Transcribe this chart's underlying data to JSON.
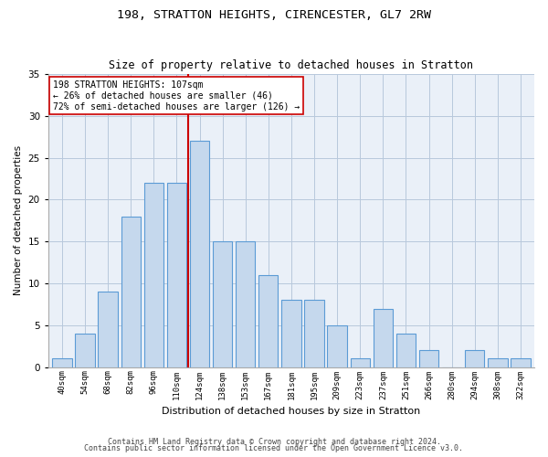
{
  "title1": "198, STRATTON HEIGHTS, CIRENCESTER, GL7 2RW",
  "title2": "Size of property relative to detached houses in Stratton",
  "xlabel": "Distribution of detached houses by size in Stratton",
  "ylabel": "Number of detached properties",
  "bar_labels": [
    "40sqm",
    "54sqm",
    "68sqm",
    "82sqm",
    "96sqm",
    "110sqm",
    "124sqm",
    "138sqm",
    "153sqm",
    "167sqm",
    "181sqm",
    "195sqm",
    "209sqm",
    "223sqm",
    "237sqm",
    "251sqm",
    "266sqm",
    "280sqm",
    "294sqm",
    "308sqm",
    "322sqm"
  ],
  "bar_values": [
    1,
    4,
    9,
    18,
    22,
    22,
    27,
    15,
    15,
    11,
    8,
    8,
    5,
    1,
    7,
    4,
    2,
    0,
    2,
    1,
    1
  ],
  "bar_color": "#c5d8ed",
  "bar_edge_color": "#5b9bd5",
  "vline_x_idx": 5,
  "vline_color": "#cc0000",
  "annotation_text": "198 STRATTON HEIGHTS: 107sqm\n← 26% of detached houses are smaller (46)\n72% of semi-detached houses are larger (126) →",
  "annotation_box_color": "#ffffff",
  "annotation_box_edge": "#cc0000",
  "ylim": [
    0,
    35
  ],
  "yticks": [
    0,
    5,
    10,
    15,
    20,
    25,
    30,
    35
  ],
  "bg_color": "#eaf0f8",
  "footer1": "Contains HM Land Registry data © Crown copyright and database right 2024.",
  "footer2": "Contains public sector information licensed under the Open Government Licence v3.0."
}
